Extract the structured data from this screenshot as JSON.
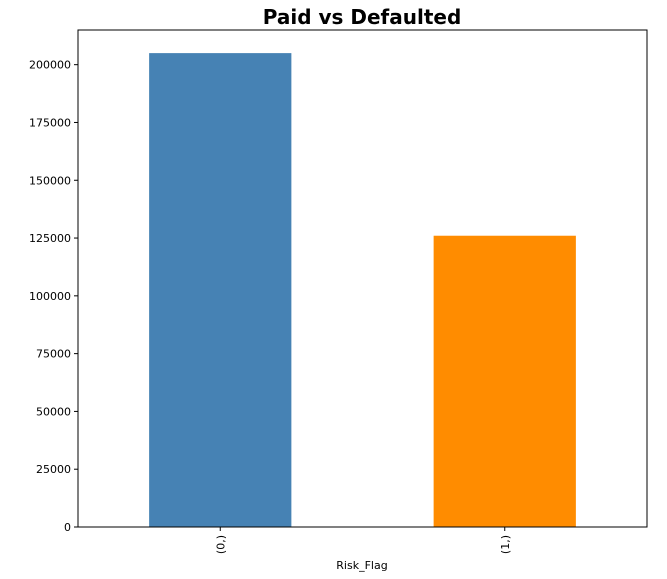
{
  "chart_data": {
    "type": "bar",
    "title": "Paid vs Defaulted",
    "xlabel": "Risk_Flag",
    "ylabel": "",
    "categories": [
      "(0,)",
      "(1,)"
    ],
    "values": [
      205000,
      126000
    ],
    "colors": [
      "#4682b4",
      "#ff8c00"
    ],
    "ylim": [
      0,
      215000
    ],
    "yticks": [
      0,
      25000,
      50000,
      75000,
      100000,
      125000,
      150000,
      175000,
      200000
    ],
    "grid": false,
    "legend": "none"
  }
}
